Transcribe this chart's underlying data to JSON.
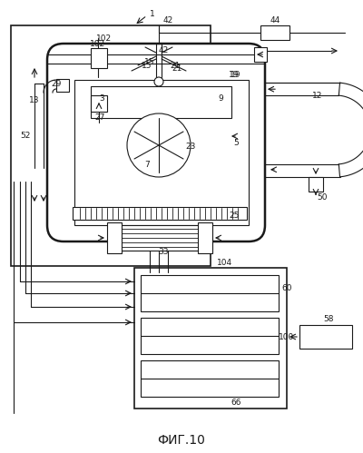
{
  "bg_color": "#ffffff",
  "line_color": "#1a1a1a",
  "title": "ФИГ.10",
  "fig_width": 4.0,
  "fig_height": 4.99,
  "dpi": 100
}
